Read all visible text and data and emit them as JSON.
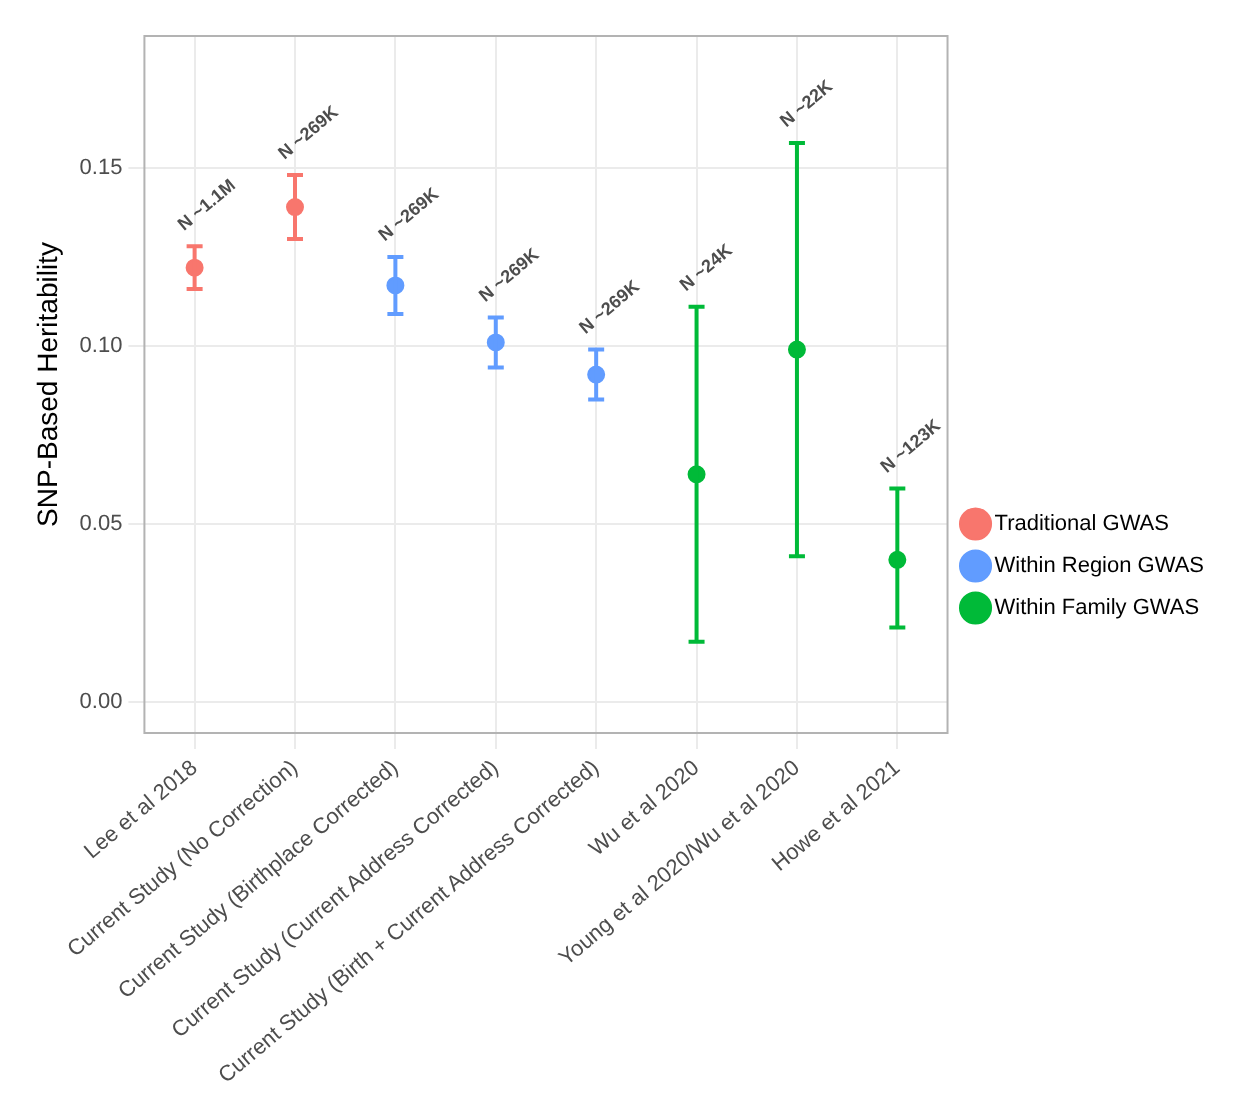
{
  "chart_data": {
    "type": "scatter",
    "ylabel": "SNP-Based Heritability",
    "categories": [
      "Lee et al 2018",
      "Current Study (No Correction)",
      "Current Study (Birthplace Corrected)",
      "Current Study (Current Address Corrected)",
      "Current Study (Birth + Current Address Corrected)",
      "Wu et al 2020",
      "Young et al 2020/Wu et al 2020",
      "Howe et al 2021"
    ],
    "series": [
      {
        "name": "Traditional GWAS",
        "color": "#f8766d",
        "values": [
          0.122,
          0.139,
          null,
          null,
          null,
          null,
          null,
          null
        ],
        "errors": [
          [
            0.116,
            0.128
          ],
          [
            0.13,
            0.148
          ],
          null,
          null,
          null,
          null,
          null,
          null
        ]
      },
      {
        "name": "Within Region GWAS",
        "color": "#619cff",
        "values": [
          null,
          null,
          0.117,
          0.101,
          0.092,
          null,
          null,
          null
        ],
        "errors": [
          null,
          null,
          [
            0.109,
            0.125
          ],
          [
            0.094,
            0.108
          ],
          [
            0.085,
            0.099
          ],
          null,
          null,
          null
        ]
      },
      {
        "name": "Within Family GWAS",
        "color": "#00ba38",
        "values": [
          null,
          null,
          null,
          null,
          null,
          0.064,
          0.099,
          0.04
        ],
        "errors": [
          null,
          null,
          null,
          null,
          null,
          [
            0.017,
            0.111
          ],
          [
            0.041,
            0.157
          ],
          [
            0.021,
            0.06
          ]
        ]
      }
    ],
    "ylim": [
      -0.0086,
      0.187
    ],
    "yticks": [
      {
        "value": 0,
        "label": "0.00"
      },
      {
        "value": 0.05,
        "label": "0.05"
      },
      {
        "value": 0.1,
        "label": "0.10"
      },
      {
        "value": 0.15,
        "label": "0.15"
      }
    ],
    "annotations": [
      {
        "text": "N ~1.1M",
        "x": "Lee et al 2018",
        "y": 0.128
      },
      {
        "text": "N ~269K",
        "x": "Current Study (No Correction)",
        "y": 0.148
      },
      {
        "text": "N ~269K",
        "x": "Current Study (Birthplace Corrected)",
        "y": 0.125
      },
      {
        "text": "N ~269K",
        "x": "Current Study (Current Address Corrected)",
        "y": 0.108
      },
      {
        "text": "N ~269K",
        "x": "Current Study (Birth + Current Address Corrected)",
        "y": 0.099
      },
      {
        "text": "N ~24K",
        "x": "Wu et al 2020",
        "y": 0.111
      },
      {
        "text": "N ~22K",
        "x": "Young et al 2020/Wu et al 2020",
        "y": 0.157
      },
      {
        "text": "N ~123K",
        "x": "Howe et al 2021",
        "y": 0.06
      }
    ],
    "grid": true,
    "legend": "right",
    "marker": "circle"
  }
}
